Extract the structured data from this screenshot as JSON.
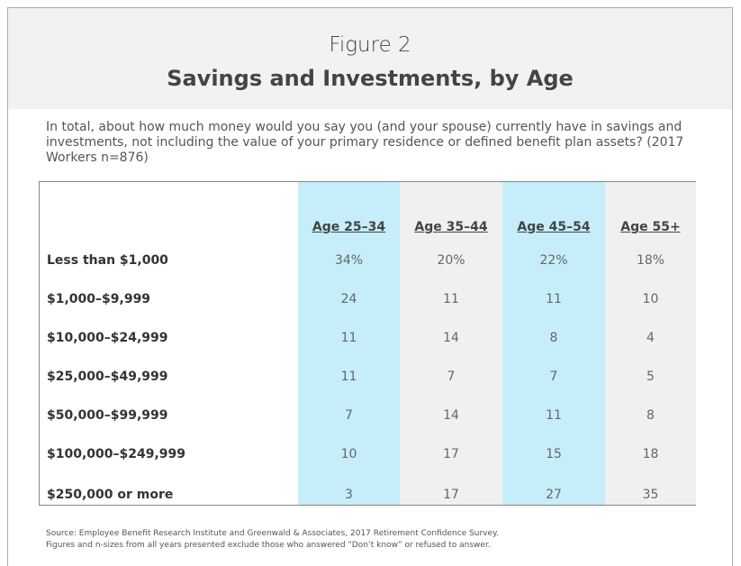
{
  "header": {
    "figure": "Figure 2",
    "title": "Savings and Investments, by Age"
  },
  "question": "In total, about how much money would you say you (and your spouse) currently have in savings and investments, not including the value of your primary residence or defined benefit plan assets? (2017 Workers n=876)",
  "table": {
    "columns": [
      "Age 25–34",
      "Age 35–44",
      "Age 45–54",
      "Age 55+"
    ],
    "rows": [
      {
        "label": "Less than $1,000",
        "cells": [
          "34%",
          "20%",
          "22%",
          "18%"
        ]
      },
      {
        "label": "$1,000–$9,999",
        "cells": [
          "24",
          "11",
          "11",
          "10"
        ]
      },
      {
        "label": "$10,000–$24,999",
        "cells": [
          "11",
          "14",
          "8",
          "4"
        ]
      },
      {
        "label": "$25,000–$49,999",
        "cells": [
          "11",
          "7",
          "7",
          "5"
        ]
      },
      {
        "label": "$50,000–$99,999",
        "cells": [
          "7",
          "14",
          "11",
          "8"
        ]
      },
      {
        "label": "$100,000–$249,999",
        "cells": [
          "10",
          "17",
          "15",
          "18"
        ]
      },
      {
        "label": "$250,000 or more",
        "cells": [
          "3",
          "17",
          "27",
          "35"
        ]
      }
    ]
  },
  "source": [
    "Source:  Employee Benefit Research Institute and Greenwald & Associates, 2017 Retirement Confidence Survey.",
    "Figures and n-sizes from all years presented exclude those who answered “Don’t know” or refused to answer."
  ]
}
